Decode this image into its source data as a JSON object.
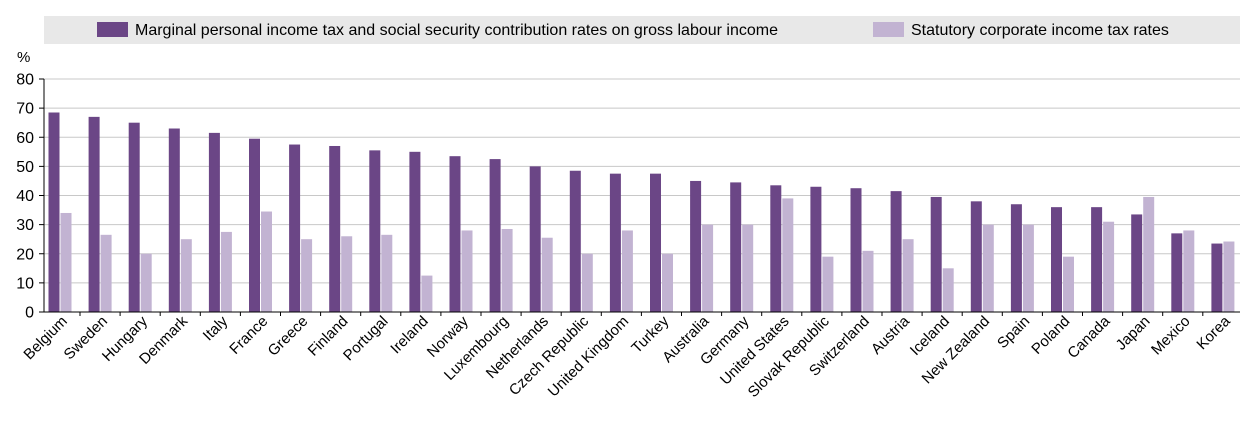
{
  "chart_data": {
    "type": "bar",
    "unit_label": "%",
    "ylim": [
      0,
      80
    ],
    "y_ticks": [
      0,
      10,
      20,
      30,
      40,
      50,
      60,
      70,
      80
    ],
    "grid": true,
    "legend_position": "top",
    "categories": [
      "Belgium",
      "Sweden",
      "Hungary",
      "Denmark",
      "Italy",
      "France",
      "Greece",
      "Finland",
      "Portugal",
      "Ireland",
      "Norway",
      "Luxembourg",
      "Netherlands",
      "Czech Republic",
      "United Kingdom",
      "Turkey",
      "Australia",
      "Germany",
      "United States",
      "Slovak Republic",
      "Switzerland",
      "Austria",
      "Iceland",
      "New Zealand",
      "Spain",
      "Poland",
      "Canada",
      "Japan",
      "Mexico",
      "Korea"
    ],
    "series": [
      {
        "name": "Marginal personal income tax and social security contribution rates on gross labour income",
        "color": "#6b4686",
        "values": [
          68.5,
          67,
          65,
          63,
          61.5,
          59.5,
          57.5,
          57,
          55.5,
          55,
          53.5,
          52.5,
          50,
          48.5,
          47.5,
          47.5,
          45,
          44.5,
          43.5,
          43,
          42.5,
          41.5,
          39.5,
          38,
          37,
          36,
          36,
          33.5,
          27,
          23.5
        ]
      },
      {
        "name": "Statutory corporate income tax rates",
        "color": "#c2b3d2",
        "values": [
          34,
          26.5,
          20,
          25,
          27.5,
          34.5,
          25,
          26,
          26.5,
          12.5,
          28,
          28.5,
          25.5,
          20,
          28,
          20,
          30,
          30,
          39,
          19,
          21,
          25,
          15,
          30,
          30,
          19,
          31,
          39.5,
          28,
          24.2
        ]
      }
    ]
  }
}
